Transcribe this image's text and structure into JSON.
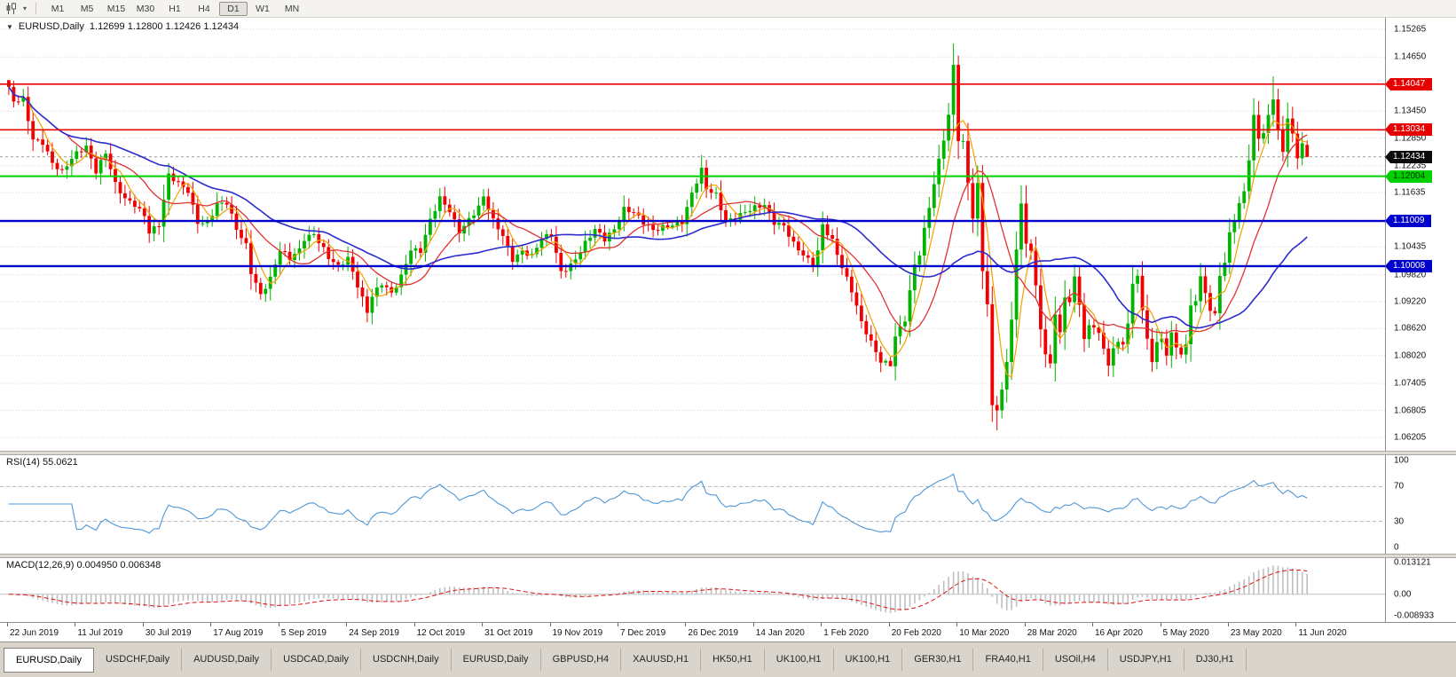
{
  "toolbar": {
    "timeframes": [
      {
        "label": "M1",
        "active": false
      },
      {
        "label": "M5",
        "active": false
      },
      {
        "label": "M15",
        "active": false
      },
      {
        "label": "M30",
        "active": false
      },
      {
        "label": "H1",
        "active": false
      },
      {
        "label": "H4",
        "active": false
      },
      {
        "label": "D1",
        "active": true
      },
      {
        "label": "W1",
        "active": false
      },
      {
        "label": "MN",
        "active": false
      }
    ]
  },
  "icons": {
    "symbol_menu": "▼",
    "toolbar_caret": "▾"
  },
  "chart": {
    "symbol_period": "EURUSD,Daily",
    "ohlc": "1.12699 1.12800 1.12426 1.12434",
    "open": "1.12699",
    "high": "1.12800",
    "low": "1.12426",
    "close": "1.12434"
  },
  "price_axis": {
    "labels": [
      "1.15265",
      "1.14650",
      "1.13450",
      "1.12850",
      "1.12235",
      "1.11635",
      "1.10435",
      "1.09820",
      "1.09220",
      "1.08620",
      "1.08020",
      "1.07405",
      "1.06805",
      "1.06205"
    ],
    "hidden_gridlines": [
      "1.14050",
      "1.11035"
    ],
    "current_price": "1.12434"
  },
  "levels": [
    {
      "price": 1.14047,
      "label": "1.14047",
      "color": "#e60000",
      "text_color": "#ffffff",
      "width": 1.6
    },
    {
      "price": 1.13034,
      "label": "1.13034",
      "color": "#e60000",
      "text_color": "#ffffff",
      "width": 1.6
    },
    {
      "price": 1.12004,
      "label": "1.12004",
      "color": "#00d000",
      "text_color": "#003300",
      "width": 2
    },
    {
      "price": 1.11009,
      "label": "1.11009",
      "color": "#0000cd",
      "text_color": "#ffffff",
      "width": 2.4
    },
    {
      "price": 1.10008,
      "label": "1.10008",
      "color": "#0000cd",
      "text_color": "#ffffff",
      "width": 2.4
    }
  ],
  "rsi_pane": {
    "title": "RSI(14) 55.0621",
    "name": "RSI",
    "period": 14,
    "current_value": "55.0621",
    "axis_labels": [
      {
        "label": "100",
        "value": 100
      },
      {
        "label": "70",
        "value": 70
      },
      {
        "label": "30",
        "value": 30
      },
      {
        "label": "0",
        "value": 0
      }
    ],
    "level_lines": [
      70,
      30
    ]
  },
  "macd_pane": {
    "title": "MACD(12,26,9) 0.004950 0.006348",
    "params": [
      12,
      26,
      9
    ],
    "macd_value": "0.004950",
    "signal_value": "0.006348",
    "axis_labels": [
      {
        "label": "0.013121",
        "value": 0.013121
      },
      {
        "label": "0.00",
        "value": 0
      },
      {
        "label": "-0.008933",
        "value": -0.008933
      }
    ],
    "axis_max": 0.013121,
    "axis_min": -0.008933
  },
  "time_axis": {
    "bars_per_tick": 14,
    "dates": [
      "22 Jun 2019",
      "11 Jul 2019",
      "30 Jul 2019",
      "17 Aug 2019",
      "5 Sep 2019",
      "24 Sep 2019",
      "12 Oct 2019",
      "31 Oct 2019",
      "19 Nov 2019",
      "7 Dec 2019",
      "26 Dec 2019",
      "14 Jan 2020",
      "1 Feb 2020",
      "20 Feb 2020",
      "10 Mar 2020",
      "28 Mar 2020",
      "16 Apr 2020",
      "5 May 2020",
      "23 May 2020",
      "11 Jun 2020"
    ]
  },
  "tabs": [
    {
      "label": "EURUSD,Daily",
      "active": true
    },
    {
      "label": "USDCHF,Daily",
      "active": false
    },
    {
      "label": "AUDUSD,Daily",
      "active": false
    },
    {
      "label": "USDCAD,Daily",
      "active": false
    },
    {
      "label": "USDCNH,Daily",
      "active": false
    },
    {
      "label": "EURUSD,Daily",
      "active": false
    },
    {
      "label": "GBPUSD,H4",
      "active": false
    },
    {
      "label": "XAUUSD,H1",
      "active": false
    },
    {
      "label": "HK50,H1",
      "active": false
    },
    {
      "label": "UK100,H1",
      "active": false
    },
    {
      "label": "UK100,H1",
      "active": false
    },
    {
      "label": "GER30,H1",
      "active": false
    },
    {
      "label": "FRA40,H1",
      "active": false
    },
    {
      "label": "USOil,H4",
      "active": false
    },
    {
      "label": "USDJPY,H1",
      "active": false
    },
    {
      "label": "DJ30,H1",
      "active": false
    }
  ],
  "colors": {
    "up": "#00b400",
    "down": "#f00000",
    "grid": "#d4d4d4",
    "rsi_line": "#4f97d7",
    "macd_hist": "#bfbfbf",
    "macd_signal": "#e01010",
    "bid_line": "#9a9a9a",
    "background": "#ffffff"
  },
  "chart_data": {
    "type": "candlestick",
    "symbol": "EURUSD",
    "period": "Daily",
    "price_range": [
      1.06205,
      1.15265
    ],
    "bar_count": 269,
    "close_anchors": [
      [
        0,
        1.1392
      ],
      [
        1,
        1.1365
      ],
      [
        3,
        1.1373
      ],
      [
        5,
        1.1285
      ],
      [
        7,
        1.1276
      ],
      [
        9,
        1.1227
      ],
      [
        11,
        1.1207
      ],
      [
        13,
        1.124
      ],
      [
        14,
        1.1253
      ],
      [
        16,
        1.1269
      ],
      [
        18,
        1.1212
      ],
      [
        20,
        1.125
      ],
      [
        22,
        1.118
      ],
      [
        24,
        1.115
      ],
      [
        26,
        1.114
      ],
      [
        28,
        1.1115
      ],
      [
        29,
        1.1077
      ],
      [
        31,
        1.109
      ],
      [
        33,
        1.12
      ],
      [
        35,
        1.1185
      ],
      [
        37,
        1.117
      ],
      [
        39,
        1.11
      ],
      [
        41,
        1.1095
      ],
      [
        43,
        1.1135
      ],
      [
        45,
        1.114
      ],
      [
        47,
        1.1085
      ],
      [
        49,
        1.105
      ],
      [
        50,
        1.099
      ],
      [
        52,
        1.0936
      ],
      [
        54,
        1.097
      ],
      [
        56,
        1.1035
      ],
      [
        58,
        1.102
      ],
      [
        60,
        1.104
      ],
      [
        61,
        1.1064
      ],
      [
        63,
        1.1071
      ],
      [
        66,
        1.1017
      ],
      [
        68,
        1.1
      ],
      [
        70,
        1.1021
      ],
      [
        72,
        1.096
      ],
      [
        74,
        1.0899
      ],
      [
        75,
        1.0932
      ],
      [
        77,
        1.096
      ],
      [
        79,
        1.094
      ],
      [
        81,
        1.098
      ],
      [
        83,
        1.104
      ],
      [
        85,
        1.1034
      ],
      [
        87,
        1.11
      ],
      [
        89,
        1.115
      ],
      [
        91,
        1.1125
      ],
      [
        93,
        1.108
      ],
      [
        95,
        1.1105
      ],
      [
        97,
        1.113
      ],
      [
        98,
        1.1152
      ],
      [
        100,
        1.11
      ],
      [
        102,
        1.107
      ],
      [
        104,
        1.1018
      ],
      [
        106,
        1.1035
      ],
      [
        108,
        1.1021
      ],
      [
        110,
        1.106
      ],
      [
        112,
        1.107
      ],
      [
        114,
        1.099
      ],
      [
        116,
        1.1005
      ],
      [
        117,
        1.1018
      ],
      [
        119,
        1.105
      ],
      [
        121,
        1.108
      ],
      [
        123,
        1.106
      ],
      [
        125,
        1.1085
      ],
      [
        127,
        1.113
      ],
      [
        129,
        1.112
      ],
      [
        131,
        1.1095
      ],
      [
        133,
        1.1078
      ],
      [
        135,
        1.1088
      ],
      [
        137,
        1.1095
      ],
      [
        139,
        1.11
      ],
      [
        141,
        1.116
      ],
      [
        143,
        1.1212
      ],
      [
        144,
        1.1171
      ],
      [
        146,
        1.116
      ],
      [
        148,
        1.1103
      ],
      [
        150,
        1.111
      ],
      [
        152,
        1.1119
      ],
      [
        154,
        1.1128
      ],
      [
        156,
        1.1136
      ],
      [
        158,
        1.11
      ],
      [
        160,
        1.1093
      ],
      [
        162,
        1.105
      ],
      [
        164,
        1.1023
      ],
      [
        166,
        1.1001
      ],
      [
        167,
        1.1033
      ],
      [
        168,
        1.1093
      ],
      [
        170,
        1.106
      ],
      [
        172,
        1.1
      ],
      [
        174,
        1.0945
      ],
      [
        176,
        1.0873
      ],
      [
        178,
        1.0831
      ],
      [
        180,
        1.0792
      ],
      [
        182,
        1.0785
      ],
      [
        183,
        1.0846
      ],
      [
        185,
        1.0881
      ],
      [
        187,
        1.1001
      ],
      [
        188,
        1.1026
      ],
      [
        190,
        1.1134
      ],
      [
        192,
        1.1238
      ],
      [
        194,
        1.1336
      ],
      [
        195,
        1.1446
      ],
      [
        196,
        1.1281
      ],
      [
        197,
        1.1271
      ],
      [
        198,
        1.1184
      ],
      [
        199,
        1.1106
      ],
      [
        200,
        1.118
      ],
      [
        201,
        1.0995
      ],
      [
        202,
        1.0917
      ],
      [
        203,
        1.0693
      ],
      [
        204,
        1.0688
      ],
      [
        205,
        1.0724
      ],
      [
        206,
        1.0789
      ],
      [
        207,
        1.0883
      ],
      [
        208,
        1.103
      ],
      [
        209,
        1.1141
      ],
      [
        210,
        1.1048
      ],
      [
        211,
        1.1031
      ],
      [
        212,
        1.0964
      ],
      [
        213,
        1.0859
      ],
      [
        214,
        1.0808
      ],
      [
        215,
        1.0791
      ],
      [
        216,
        1.089
      ],
      [
        217,
        1.0857
      ],
      [
        218,
        1.093
      ],
      [
        219,
        1.0914
      ],
      [
        220,
        1.098
      ],
      [
        221,
        1.091
      ],
      [
        222,
        1.0837
      ],
      [
        223,
        1.0875
      ],
      [
        224,
        1.0862
      ],
      [
        225,
        1.0858
      ],
      [
        226,
        1.0822
      ],
      [
        227,
        1.0777
      ],
      [
        228,
        1.0823
      ],
      [
        229,
        1.0829
      ],
      [
        230,
        1.0822
      ],
      [
        231,
        1.0875
      ],
      [
        232,
        1.0955
      ],
      [
        233,
        1.098
      ],
      [
        234,
        1.0906
      ],
      [
        235,
        1.0837
      ],
      [
        236,
        1.0795
      ],
      [
        237,
        1.0834
      ],
      [
        238,
        1.0839
      ],
      [
        239,
        1.0807
      ],
      [
        240,
        1.0848
      ],
      [
        241,
        1.0818
      ],
      [
        242,
        1.0805
      ],
      [
        243,
        1.082
      ],
      [
        244,
        1.0916
      ],
      [
        245,
        1.0924
      ],
      [
        246,
        1.0977
      ],
      [
        247,
        1.0949
      ],
      [
        248,
        1.0901
      ],
      [
        249,
        1.0897
      ],
      [
        250,
        1.0983
      ],
      [
        251,
        1.1002
      ],
      [
        252,
        1.1076
      ],
      [
        253,
        1.1101
      ],
      [
        254,
        1.1134
      ],
      [
        255,
        1.1171
      ],
      [
        256,
        1.1234
      ],
      [
        257,
        1.1337
      ],
      [
        258,
        1.1291
      ],
      [
        259,
        1.1294
      ],
      [
        260,
        1.134
      ],
      [
        261,
        1.1373
      ],
      [
        262,
        1.1298
      ],
      [
        263,
        1.1256
      ],
      [
        264,
        1.1324
      ],
      [
        265,
        1.129
      ],
      [
        266,
        1.1244
      ],
      [
        267,
        1.127
      ],
      [
        268,
        1.12434
      ]
    ],
    "special_bars": [
      {
        "index": 0,
        "high": 1.1405
      },
      {
        "index": 1,
        "high": 1.1412
      },
      {
        "index": 182,
        "low": 1.0778
      },
      {
        "index": 195,
        "high": 1.1495
      },
      {
        "index": 196,
        "high": 1.1468
      },
      {
        "index": 203,
        "low": 1.0655
      },
      {
        "index": 204,
        "low": 1.0636
      },
      {
        "index": 227,
        "low": 1.0756
      },
      {
        "index": 236,
        "low": 1.0766
      },
      {
        "index": 261,
        "high": 1.1422
      },
      {
        "index": 268,
        "open": 1.12699,
        "high": 1.128,
        "low": 1.12426,
        "close": 1.12434
      }
    ],
    "moving_averages": [
      {
        "period": 5,
        "color": "#f2a100",
        "width": 1.2
      },
      {
        "period": 13,
        "color": "#e03232",
        "width": 1.3
      },
      {
        "period": 34,
        "color": "#2b2bd0",
        "width": 1.6
      }
    ],
    "indicators": {
      "rsi_period": 14,
      "macd_params": [
        12,
        26,
        9
      ]
    }
  }
}
